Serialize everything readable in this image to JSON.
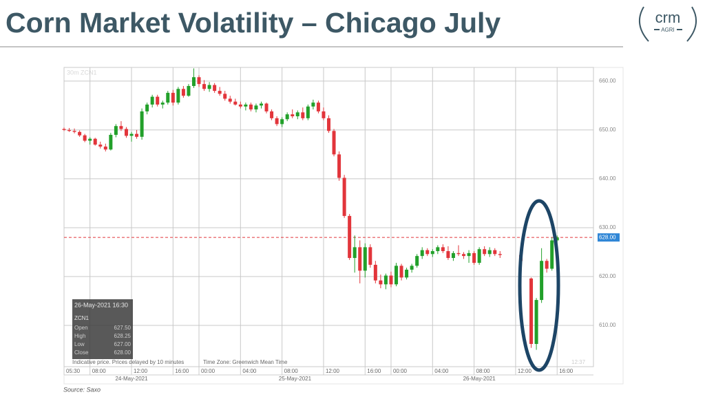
{
  "slide": {
    "title": "Corn Market Volatility – Chicago July",
    "source": "Source: Saxo",
    "logo": {
      "name": "crm",
      "sub": "AGRI"
    }
  },
  "chart_data": {
    "type": "candlestick",
    "symbol": "30m ZCN1",
    "up_color": "#22a02a",
    "down_color": "#e2353b",
    "ylim": [
      601.55,
      662.8
    ],
    "yticks": [
      {
        "value": 610,
        "label": "610.00"
      },
      {
        "value": 620,
        "label": "620.00"
      },
      {
        "value": 630,
        "label": "630.00"
      },
      {
        "value": 640,
        "label": "640.00"
      },
      {
        "value": 650,
        "label": "650.00"
      },
      {
        "value": 660,
        "label": "660.00"
      }
    ],
    "xlim": [
      0,
      102
    ],
    "xticks": [
      {
        "value": 0,
        "label": "05:30"
      },
      {
        "value": 5,
        "label": "08:00"
      },
      {
        "value": 13,
        "label": "12:00"
      },
      {
        "value": 21,
        "label": "16:00"
      },
      {
        "value": 26,
        "label": "00:00"
      },
      {
        "value": 34,
        "label": "04:00"
      },
      {
        "value": 42,
        "label": "08:00"
      },
      {
        "value": 50,
        "label": "12:00"
      },
      {
        "value": 58,
        "label": "16:00"
      },
      {
        "value": 63,
        "label": "00:00"
      },
      {
        "value": 71,
        "label": "04:00"
      },
      {
        "value": 79,
        "label": "08:00"
      },
      {
        "value": 87,
        "label": "12:00"
      },
      {
        "value": 95,
        "label": "16:00"
      }
    ],
    "dates": [
      "24-May-2021",
      "25-May-2021",
      "26-May-2021"
    ],
    "grid": true,
    "last_price": {
      "value": 628,
      "label": "628.00"
    },
    "info_box": {
      "date": "26-May-2021 16:30",
      "symbol": "ZCN1",
      "rows": [
        [
          "Open",
          "627.50"
        ],
        [
          "High",
          "628.25"
        ],
        [
          "Low",
          "627.00"
        ],
        [
          "Close",
          "628.00"
        ]
      ]
    },
    "footer": [
      "Indicative price. Prices delayed by 10 minutes",
      "Time Zone: Greenwich Mean Time",
      "12:37"
    ],
    "candles": [
      {
        "x": 0,
        "open": 650.2,
        "high": 650.5,
        "low": 649.8,
        "close": 650.0
      },
      {
        "x": 1,
        "open": 650.0,
        "high": 650.4,
        "low": 649.6,
        "close": 649.8
      },
      {
        "x": 2,
        "open": 649.8,
        "high": 650.3,
        "low": 649.3,
        "close": 649.6
      },
      {
        "x": 3,
        "open": 649.6,
        "high": 649.9,
        "low": 648.6,
        "close": 648.9
      },
      {
        "x": 4,
        "open": 648.9,
        "high": 649.2,
        "low": 647.5,
        "close": 647.8
      },
      {
        "x": 5,
        "open": 647.8,
        "high": 648.5,
        "low": 647.0,
        "close": 648.2
      },
      {
        "x": 6,
        "open": 648.2,
        "high": 648.4,
        "low": 646.8,
        "close": 647.0
      },
      {
        "x": 7,
        "open": 647.0,
        "high": 647.6,
        "low": 646.2,
        "close": 646.6
      },
      {
        "x": 8,
        "open": 646.6,
        "high": 647.2,
        "low": 645.6,
        "close": 646.0
      },
      {
        "x": 9,
        "open": 646.0,
        "high": 649.4,
        "low": 645.8,
        "close": 649.0
      },
      {
        "x": 10,
        "open": 649.0,
        "high": 651.2,
        "low": 648.5,
        "close": 650.8
      },
      {
        "x": 11,
        "open": 650.8,
        "high": 651.8,
        "low": 649.8,
        "close": 650.2
      },
      {
        "x": 12,
        "open": 650.2,
        "high": 650.6,
        "low": 648.4,
        "close": 648.8
      },
      {
        "x": 13,
        "open": 648.8,
        "high": 649.6,
        "low": 647.6,
        "close": 649.2
      },
      {
        "x": 14,
        "open": 649.2,
        "high": 650.0,
        "low": 648.2,
        "close": 648.6
      },
      {
        "x": 15,
        "open": 648.6,
        "high": 654.4,
        "low": 648.0,
        "close": 653.8
      },
      {
        "x": 16,
        "open": 653.8,
        "high": 655.6,
        "low": 653.2,
        "close": 655.2
      },
      {
        "x": 17,
        "open": 655.2,
        "high": 657.2,
        "low": 654.6,
        "close": 656.8
      },
      {
        "x": 18,
        "open": 656.8,
        "high": 657.2,
        "low": 654.8,
        "close": 655.2
      },
      {
        "x": 19,
        "open": 655.2,
        "high": 656.0,
        "low": 654.4,
        "close": 655.6
      },
      {
        "x": 20,
        "open": 655.6,
        "high": 658.0,
        "low": 655.2,
        "close": 657.6
      },
      {
        "x": 21,
        "open": 657.6,
        "high": 658.2,
        "low": 655.0,
        "close": 655.6
      },
      {
        "x": 22,
        "open": 655.6,
        "high": 658.8,
        "low": 655.2,
        "close": 658.4
      },
      {
        "x": 23,
        "open": 658.4,
        "high": 659.0,
        "low": 656.6,
        "close": 657.0
      },
      {
        "x": 24,
        "open": 657.0,
        "high": 659.4,
        "low": 656.8,
        "close": 659.0
      },
      {
        "x": 25,
        "open": 659.0,
        "high": 662.6,
        "low": 658.6,
        "close": 660.8
      },
      {
        "x": 26,
        "open": 660.8,
        "high": 661.2,
        "low": 658.8,
        "close": 659.4
      },
      {
        "x": 27,
        "open": 659.4,
        "high": 660.2,
        "low": 658.0,
        "close": 658.4
      },
      {
        "x": 28,
        "open": 658.4,
        "high": 659.8,
        "low": 657.8,
        "close": 659.2
      },
      {
        "x": 29,
        "open": 659.2,
        "high": 659.6,
        "low": 657.6,
        "close": 658.0
      },
      {
        "x": 30,
        "open": 658.0,
        "high": 658.8,
        "low": 657.0,
        "close": 657.4
      },
      {
        "x": 31,
        "open": 657.4,
        "high": 658.0,
        "low": 656.0,
        "close": 656.4
      },
      {
        "x": 32,
        "open": 656.4,
        "high": 657.0,
        "low": 655.4,
        "close": 655.8
      },
      {
        "x": 33,
        "open": 655.8,
        "high": 656.4,
        "low": 655.0,
        "close": 655.2
      },
      {
        "x": 34,
        "open": 655.2,
        "high": 655.8,
        "low": 654.4,
        "close": 654.8
      },
      {
        "x": 35,
        "open": 654.8,
        "high": 655.6,
        "low": 654.0,
        "close": 655.2
      },
      {
        "x": 36,
        "open": 655.2,
        "high": 655.6,
        "low": 653.8,
        "close": 654.2
      },
      {
        "x": 37,
        "open": 654.2,
        "high": 655.4,
        "low": 653.6,
        "close": 655.0
      },
      {
        "x": 38,
        "open": 655.0,
        "high": 655.8,
        "low": 654.4,
        "close": 655.4
      },
      {
        "x": 39,
        "open": 655.4,
        "high": 655.6,
        "low": 653.4,
        "close": 653.8
      },
      {
        "x": 40,
        "open": 653.8,
        "high": 654.2,
        "low": 652.0,
        "close": 652.4
      },
      {
        "x": 41,
        "open": 652.4,
        "high": 652.8,
        "low": 650.8,
        "close": 651.2
      },
      {
        "x": 42,
        "open": 651.2,
        "high": 652.6,
        "low": 650.6,
        "close": 652.2
      },
      {
        "x": 43,
        "open": 652.2,
        "high": 653.6,
        "low": 651.8,
        "close": 653.2
      },
      {
        "x": 44,
        "open": 653.2,
        "high": 654.2,
        "low": 652.4,
        "close": 652.8
      },
      {
        "x": 45,
        "open": 652.8,
        "high": 654.0,
        "low": 652.2,
        "close": 653.6
      },
      {
        "x": 46,
        "open": 653.6,
        "high": 654.6,
        "low": 652.0,
        "close": 652.4
      },
      {
        "x": 47,
        "open": 652.4,
        "high": 655.2,
        "low": 652.0,
        "close": 654.8
      },
      {
        "x": 48,
        "open": 654.8,
        "high": 656.2,
        "low": 654.2,
        "close": 655.6
      },
      {
        "x": 49,
        "open": 655.6,
        "high": 656.0,
        "low": 653.4,
        "close": 653.8
      },
      {
        "x": 50,
        "open": 653.8,
        "high": 654.6,
        "low": 652.0,
        "close": 652.4
      },
      {
        "x": 51,
        "open": 652.4,
        "high": 653.0,
        "low": 649.4,
        "close": 649.8
      },
      {
        "x": 52,
        "open": 649.8,
        "high": 650.2,
        "low": 644.6,
        "close": 645.0
      },
      {
        "x": 53,
        "open": 645.0,
        "high": 645.6,
        "low": 639.6,
        "close": 640.2
      },
      {
        "x": 54,
        "open": 640.2,
        "high": 640.8,
        "low": 632.0,
        "close": 632.4
      },
      {
        "x": 55,
        "open": 632.4,
        "high": 632.8,
        "low": 623.4,
        "close": 623.8
      },
      {
        "x": 56,
        "open": 623.8,
        "high": 628.4,
        "low": 620.8,
        "close": 626.0
      },
      {
        "x": 57,
        "open": 626.0,
        "high": 627.4,
        "low": 618.6,
        "close": 621.2
      },
      {
        "x": 58,
        "open": 621.2,
        "high": 626.8,
        "low": 619.8,
        "close": 626.0
      },
      {
        "x": 59,
        "open": 626.0,
        "high": 626.6,
        "low": 621.8,
        "close": 622.4
      },
      {
        "x": 60,
        "open": 622.4,
        "high": 623.2,
        "low": 618.6,
        "close": 619.2
      },
      {
        "x": 61,
        "open": 619.2,
        "high": 620.4,
        "low": 617.6,
        "close": 618.4
      },
      {
        "x": 62,
        "open": 618.4,
        "high": 620.6,
        "low": 617.4,
        "close": 620.2
      },
      {
        "x": 63,
        "open": 620.2,
        "high": 621.0,
        "low": 617.8,
        "close": 618.4
      },
      {
        "x": 64,
        "open": 618.4,
        "high": 622.8,
        "low": 618.0,
        "close": 622.2
      },
      {
        "x": 65,
        "open": 622.2,
        "high": 622.6,
        "low": 619.2,
        "close": 619.8
      },
      {
        "x": 66,
        "open": 619.8,
        "high": 621.8,
        "low": 619.4,
        "close": 621.4
      },
      {
        "x": 67,
        "open": 621.4,
        "high": 622.6,
        "low": 620.8,
        "close": 622.2
      },
      {
        "x": 68,
        "open": 622.2,
        "high": 624.6,
        "low": 621.8,
        "close": 624.2
      },
      {
        "x": 69,
        "open": 624.2,
        "high": 626.0,
        "low": 623.6,
        "close": 625.4
      },
      {
        "x": 70,
        "open": 625.4,
        "high": 625.8,
        "low": 624.2,
        "close": 624.6
      },
      {
        "x": 71,
        "open": 624.6,
        "high": 625.6,
        "low": 624.0,
        "close": 625.2
      },
      {
        "x": 72,
        "open": 625.2,
        "high": 626.4,
        "low": 624.6,
        "close": 626.0
      },
      {
        "x": 73,
        "open": 626.0,
        "high": 626.6,
        "low": 624.8,
        "close": 625.2
      },
      {
        "x": 74,
        "open": 625.2,
        "high": 626.2,
        "low": 623.4,
        "close": 623.8
      },
      {
        "x": 75,
        "open": 623.8,
        "high": 625.2,
        "low": 623.2,
        "close": 624.8
      },
      {
        "x": 76,
        "open": 624.8,
        "high": 626.4,
        "low": 624.2,
        "close": 624.6
      },
      {
        "x": 77,
        "open": 624.6,
        "high": 625.0,
        "low": 623.6,
        "close": 624.2
      },
      {
        "x": 78,
        "open": 624.2,
        "high": 625.4,
        "low": 622.8,
        "close": 624.8
      },
      {
        "x": 79,
        "open": 624.8,
        "high": 625.2,
        "low": 622.4,
        "close": 622.8
      },
      {
        "x": 80,
        "open": 622.8,
        "high": 626.0,
        "low": 622.4,
        "close": 625.6
      },
      {
        "x": 81,
        "open": 625.6,
        "high": 626.2,
        "low": 624.2,
        "close": 624.6
      },
      {
        "x": 82,
        "open": 624.6,
        "high": 626.0,
        "low": 624.0,
        "close": 625.4
      },
      {
        "x": 83,
        "open": 625.4,
        "high": 625.8,
        "low": 624.2,
        "close": 624.6
      },
      {
        "x": 84,
        "open": 624.6,
        "high": 625.2,
        "low": 623.8,
        "close": 624.4
      },
      {
        "x": 88,
        "open": 624.4,
        "high": 624.8,
        "low": 622.8,
        "close": 623.2
      },
      {
        "x": 90,
        "open": 619.6,
        "high": 619.8,
        "low": 605.4,
        "close": 606.2
      },
      {
        "x": 91,
        "open": 606.2,
        "high": 615.6,
        "low": 605.0,
        "close": 615.2
      },
      {
        "x": 92,
        "open": 615.2,
        "high": 625.8,
        "low": 614.6,
        "close": 623.2
      },
      {
        "x": 93,
        "open": 623.2,
        "high": 623.6,
        "low": 620.8,
        "close": 621.6
      },
      {
        "x": 94,
        "open": 621.6,
        "high": 628.0,
        "low": 621.2,
        "close": 627.4
      },
      {
        "x": 95,
        "open": 627.4,
        "high": 628.4,
        "low": 627.0,
        "close": 628.0
      }
    ]
  }
}
